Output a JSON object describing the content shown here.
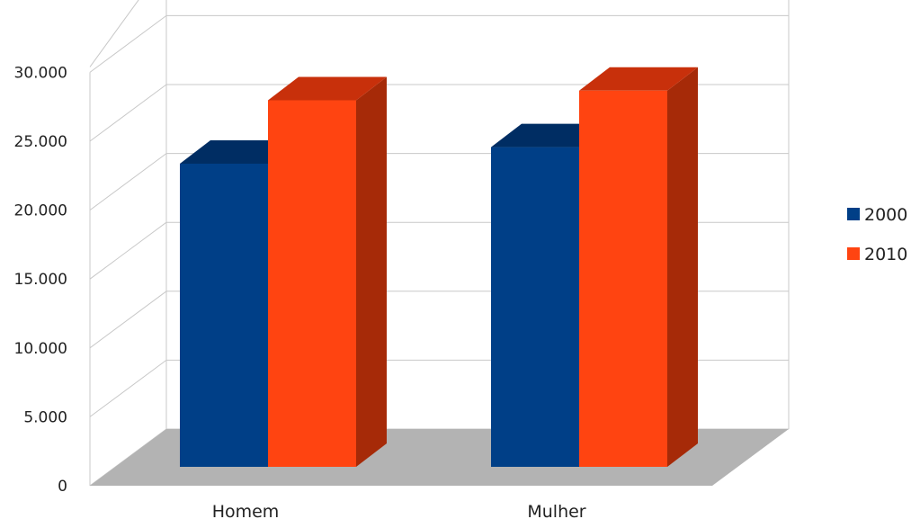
{
  "chart_data": {
    "type": "bar",
    "title": "",
    "xlabel": "",
    "ylabel": "",
    "categories": [
      "Homem",
      "Mulher"
    ],
    "series": [
      {
        "name": "2000",
        "values": [
          22000,
          23200
        ],
        "color": "#003f87",
        "top_color": "#002d63",
        "side_color": "#002d63"
      },
      {
        "name": "2010",
        "values": [
          26600,
          27300
        ],
        "color": "#ff4411",
        "top_color": "#c8300b",
        "side_color": "#a62a08"
      }
    ],
    "ylim": [
      0,
      30000
    ],
    "yticks": [
      "0",
      "5.000",
      "10.000",
      "15.000",
      "20.000",
      "25.000",
      "30.000"
    ],
    "grid": true,
    "legend_position": "right",
    "floor_color": "#b3b3b3"
  }
}
